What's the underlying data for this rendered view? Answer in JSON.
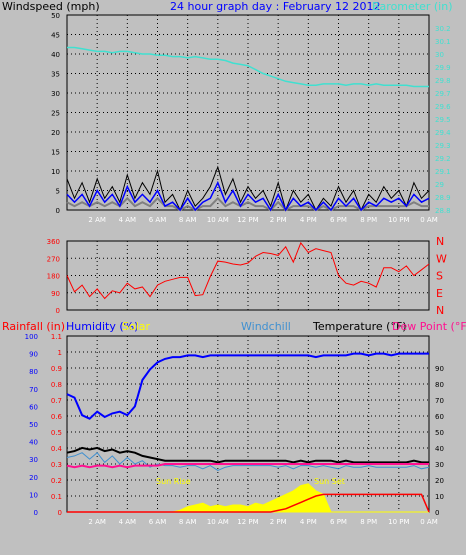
{
  "header": {
    "left_label": "Windspeed (mph)",
    "center_label": "24 hour graph day : February 12 2012",
    "right_label": "Barometer (in)"
  },
  "colors": {
    "background": "#c0c0c0",
    "grid": "#000000",
    "wind": "#000000",
    "wind_gust": "#0000ff",
    "wind_avg": "#808080",
    "barometer": "#40e0d0",
    "wind_dir": "#ff0000",
    "humidity": "#0000ff",
    "solar": "#ffff00",
    "windchill": "#4090d0",
    "temperature": "#000000",
    "dew_point": "#ff1090",
    "rainfall": "#ff0000"
  },
  "x_tick_labels": [
    "2 AM",
    "4 AM",
    "6 AM",
    "8 AM",
    "10 AM",
    "12 PM",
    "2 PM",
    "4 PM",
    "6 PM",
    "8 PM",
    "10 PM",
    "0 AM"
  ],
  "chart_data": [
    {
      "type": "line",
      "name": "wind-barometer",
      "title": "24 hour graph day : February 12 2012",
      "ylabel_left": "Windspeed (mph)",
      "ylabel_right": "Barometer (in)",
      "ylim_left": [
        0,
        50
      ],
      "ylim_right": [
        28.8,
        30.3
      ],
      "y_ticks_left": [
        "0",
        "5",
        "10",
        "15",
        "20",
        "25",
        "30",
        "35",
        "40",
        "45",
        "50"
      ],
      "y_ticks_right": [
        "28.8",
        "28.9",
        "29",
        "29.1",
        "29.2",
        "29.3",
        "29.4",
        "29.5",
        "29.6",
        "29.7",
        "29.8",
        "29.9",
        "30",
        "30.1",
        "30.2"
      ],
      "x_hours": [
        0,
        0.5,
        1,
        1.5,
        2,
        2.5,
        3,
        3.5,
        4,
        4.5,
        5,
        5.5,
        6,
        6.5,
        7,
        7.5,
        8,
        8.5,
        9,
        9.5,
        10,
        10.5,
        11,
        11.5,
        12,
        12.5,
        13,
        13.5,
        14,
        14.5,
        15,
        15.5,
        16,
        16.5,
        17,
        17.5,
        18,
        18.5,
        19,
        19.5,
        20,
        20.5,
        21,
        21.5,
        22,
        22.5,
        23,
        23.5,
        24
      ],
      "series": [
        {
          "key": "gust",
          "values": [
            8,
            3,
            7,
            2,
            8,
            3,
            6,
            2,
            9,
            3,
            7,
            4,
            10,
            2,
            4,
            0,
            5,
            1,
            3,
            6,
            11,
            4,
            8,
            2,
            6,
            3,
            5,
            1,
            7,
            0,
            5,
            2,
            4,
            0,
            3,
            1,
            6,
            2,
            5,
            0,
            4,
            2,
            6,
            3,
            5,
            1,
            7,
            3,
            5
          ]
        },
        {
          "key": "wind",
          "values": [
            4,
            2,
            4,
            1,
            5,
            2,
            4,
            1,
            6,
            2,
            4,
            2,
            5,
            1,
            2,
            0,
            3,
            0,
            2,
            3,
            7,
            2,
            5,
            1,
            4,
            2,
            3,
            0,
            4,
            0,
            3,
            1,
            2,
            0,
            2,
            0,
            3,
            1,
            3,
            0,
            2,
            1,
            3,
            2,
            3,
            1,
            4,
            2,
            3
          ]
        },
        {
          "key": "avg",
          "values": [
            2,
            1,
            2,
            1,
            2,
            1,
            2,
            1,
            3,
            1,
            2,
            1,
            3,
            1,
            1,
            0,
            1,
            0,
            1,
            1,
            3,
            1,
            2,
            1,
            2,
            1,
            1,
            0,
            2,
            0,
            1,
            1,
            1,
            0,
            1,
            0,
            1,
            1,
            1,
            0,
            1,
            1,
            1,
            1,
            1,
            1,
            2,
            1,
            1
          ]
        },
        {
          "key": "barometer",
          "values": [
            30.05,
            30.05,
            30.04,
            30.03,
            30.02,
            30.02,
            30.01,
            30.02,
            30.02,
            30.01,
            30.0,
            30.0,
            29.99,
            29.99,
            29.98,
            29.98,
            29.97,
            29.98,
            29.97,
            29.96,
            29.96,
            29.95,
            29.93,
            29.92,
            29.91,
            29.88,
            29.85,
            29.83,
            29.81,
            29.79,
            29.78,
            29.77,
            29.76,
            29.76,
            29.77,
            29.77,
            29.77,
            29.76,
            29.77,
            29.77,
            29.76,
            29.77,
            29.76,
            29.76,
            29.76,
            29.76,
            29.75,
            29.75,
            29.75
          ]
        }
      ]
    },
    {
      "type": "line",
      "name": "wind-direction",
      "ylim": [
        0,
        360
      ],
      "y_ticks": [
        "0",
        "90",
        "180",
        "270",
        "360"
      ],
      "compass_labels": [
        "N",
        "W",
        "S",
        "E",
        "N"
      ],
      "x_hours": [
        0,
        0.5,
        1,
        1.5,
        2,
        2.5,
        3,
        3.5,
        4,
        4.5,
        5,
        5.5,
        6,
        6.5,
        7,
        7.5,
        8,
        8.5,
        9,
        9.5,
        10,
        10.5,
        11,
        11.5,
        12,
        12.5,
        13,
        13.5,
        14,
        14.5,
        15,
        15.5,
        16,
        16.5,
        17,
        17.5,
        18,
        18.5,
        19,
        19.5,
        20,
        20.5,
        21,
        21.5,
        22,
        22.5,
        23,
        23.5,
        24
      ],
      "values": [
        180,
        95,
        130,
        70,
        110,
        60,
        100,
        90,
        140,
        110,
        120,
        70,
        130,
        150,
        160,
        170,
        170,
        75,
        80,
        175,
        255,
        250,
        240,
        235,
        245,
        280,
        300,
        295,
        285,
        330,
        250,
        350,
        300,
        320,
        310,
        300,
        180,
        140,
        130,
        150,
        140,
        120,
        220,
        220,
        200,
        230,
        180,
        210,
        240
      ]
    },
    {
      "type": "line",
      "name": "temperature-humidity",
      "ylabels_left": [
        "Rainfall (in)",
        "Humidity (%)",
        "Solar"
      ],
      "ylabels_right": [
        "Windchill",
        "Temperature (°F)",
        "Dew Point (°F)"
      ],
      "ylim_left_pct": [
        0,
        100
      ],
      "ylim_left_rain": [
        0,
        1.1
      ],
      "ylim_right": [
        0,
        100
      ],
      "y_ticks_left_pct": [
        "0",
        "10",
        "20",
        "30",
        "40",
        "50",
        "60",
        "70",
        "80",
        "90",
        "100"
      ],
      "y_ticks_left_rain": [
        "0",
        "0.1",
        "0.2",
        "0.3",
        "0.4",
        "0.5",
        "0.6",
        "0.7",
        "0.8",
        "0.9",
        "1",
        "1.1"
      ],
      "y_ticks_right": [
        "0",
        "10",
        "20",
        "30",
        "40",
        "50",
        "60",
        "70",
        "80",
        "90"
      ],
      "annotations": [
        "Sun Rise",
        "Sun Set"
      ],
      "x_hours": [
        0,
        0.5,
        1,
        1.5,
        2,
        2.5,
        3,
        3.5,
        4,
        4.5,
        5,
        5.5,
        6,
        6.5,
        7,
        7.5,
        8,
        8.5,
        9,
        9.5,
        10,
        10.5,
        11,
        11.5,
        12,
        12.5,
        13,
        13.5,
        14,
        14.5,
        15,
        15.5,
        16,
        16.5,
        17,
        17.5,
        18,
        18.5,
        19,
        19.5,
        20,
        20.5,
        21,
        21.5,
        22,
        22.5,
        23,
        23.5,
        24
      ],
      "series": [
        {
          "key": "humidity",
          "values": [
            67,
            65,
            55,
            53,
            57,
            54,
            56,
            57,
            55,
            60,
            75,
            81,
            85,
            87,
            88,
            88,
            89,
            89,
            88,
            89,
            89,
            89,
            89,
            89,
            89,
            89,
            89,
            89,
            89,
            89,
            89,
            89,
            89,
            88,
            89,
            89,
            89,
            89,
            90,
            90,
            89,
            90,
            90,
            89,
            90,
            90,
            90,
            90,
            90
          ]
        },
        {
          "key": "temperature",
          "values": [
            37,
            38,
            40,
            39,
            40,
            38,
            39,
            37,
            38,
            37,
            35,
            34,
            33,
            32,
            32,
            32,
            32,
            32,
            32,
            32,
            31,
            32,
            32,
            32,
            32,
            32,
            32,
            32,
            32,
            32,
            31,
            32,
            31,
            32,
            32,
            32,
            31,
            32,
            31,
            31,
            31,
            31,
            31,
            31,
            31,
            31,
            32,
            31,
            31
          ]
        },
        {
          "key": "windchill",
          "values": [
            34,
            35,
            37,
            33,
            37,
            31,
            35,
            30,
            34,
            30,
            32,
            28,
            30,
            29,
            29,
            28,
            29,
            29,
            27,
            29,
            26,
            28,
            29,
            29,
            29,
            29,
            29,
            29,
            28,
            29,
            27,
            29,
            29,
            28,
            29,
            28,
            27,
            29,
            28,
            28,
            29,
            28,
            28,
            28,
            28,
            28,
            29,
            27,
            28
          ]
        },
        {
          "key": "dew_point",
          "values": [
            29,
            28,
            29,
            28,
            29,
            29,
            28,
            29,
            28,
            29,
            29,
            29,
            29,
            30,
            30,
            30,
            30,
            30,
            30,
            30,
            30,
            30,
            30,
            30,
            30,
            30,
            30,
            30,
            30,
            30,
            30,
            30,
            30,
            30,
            30,
            30,
            30,
            30,
            30,
            30,
            30,
            30,
            30,
            30,
            30,
            30,
            30,
            30,
            30
          ]
        },
        {
          "key": "solar",
          "values": [
            0,
            0,
            0,
            0,
            0,
            0,
            0,
            0,
            0,
            0,
            0,
            0,
            0,
            0,
            0,
            1,
            3,
            4,
            5,
            3,
            4,
            3,
            4,
            4,
            3,
            5,
            4,
            6,
            8,
            10,
            12,
            15,
            16,
            12,
            10,
            0,
            0,
            0,
            0,
            0,
            0,
            0,
            0,
            0,
            0,
            0,
            0,
            0,
            0
          ]
        },
        {
          "key": "rainfall",
          "values": [
            0,
            0,
            0,
            0,
            0,
            0,
            0,
            0,
            0,
            0,
            0,
            0,
            0,
            0,
            0,
            0,
            0,
            0,
            0,
            0,
            0,
            0,
            0,
            0,
            0,
            0,
            0,
            0,
            0.01,
            0.02,
            0.04,
            0.06,
            0.08,
            0.1,
            0.11,
            0.11,
            0.11,
            0.11,
            0.11,
            0.11,
            0.11,
            0.11,
            0.11,
            0.11,
            0.11,
            0.11,
            0.11,
            0.11,
            0
          ]
        }
      ]
    }
  ],
  "bottom": {
    "rainfall_label": "Rainfall (in)",
    "humidity_label": "Humidity (%)",
    "solar_label": "Solar",
    "windchill_label": "Windchill",
    "temperature_label": "Temperature (°F)",
    "dewpoint_label": "Dew Point (°F)",
    "sunrise_label": "Sun Rise",
    "sunset_label": "Sun Set"
  }
}
